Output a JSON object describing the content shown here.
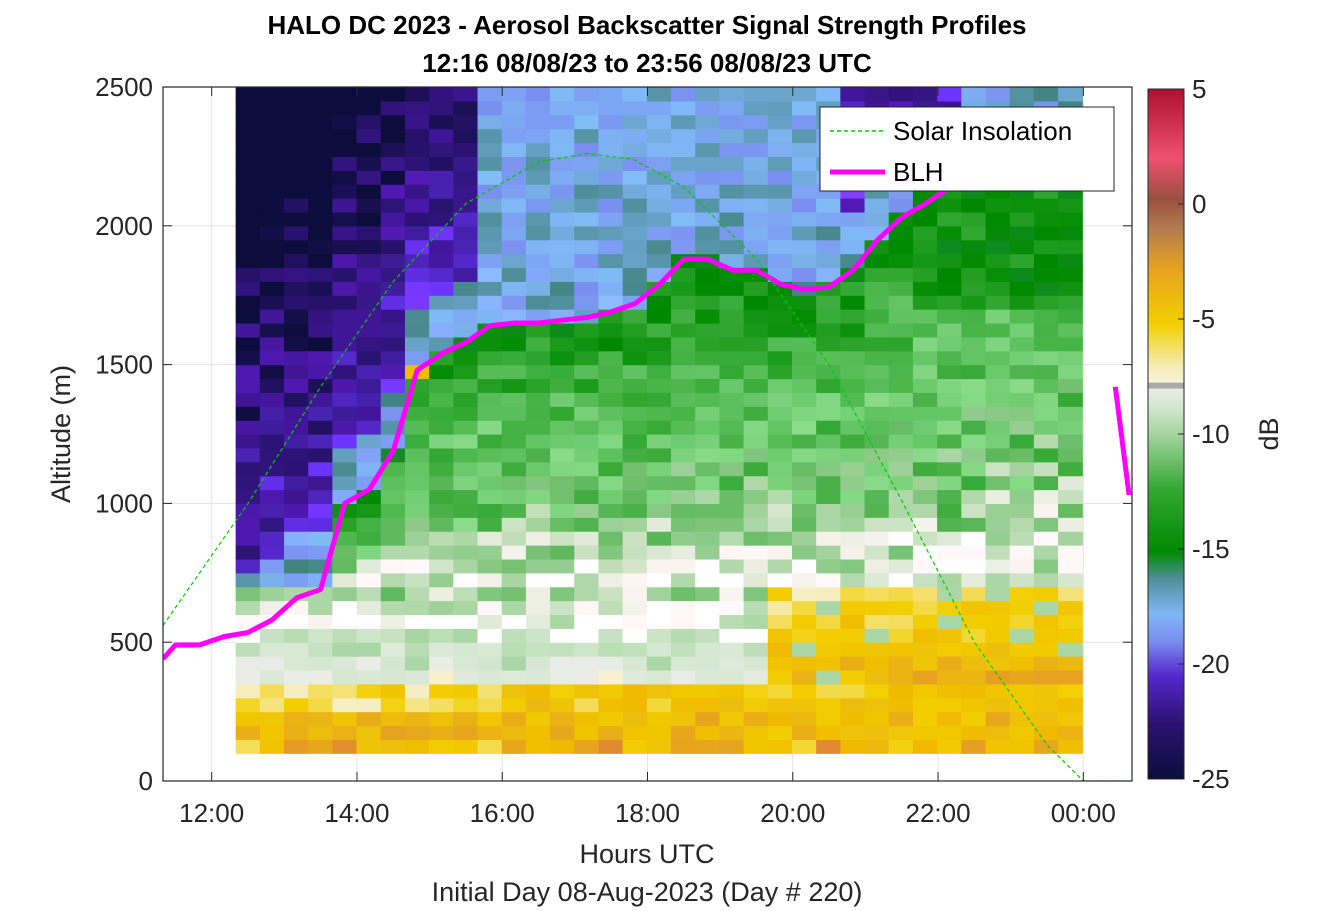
{
  "chart_data": {
    "type": "heatmap",
    "title": "HALO DC 2023 - Aerosol Backscatter Signal Strength Profiles",
    "subtitle": "12:16 08/08/23 to 23:56 08/08/23  UTC",
    "xlabel": "Hours UTC",
    "xlabel2": "Initial Day 08-Aug-2023 (Day # 220)",
    "ylabel": "Altitude (m)",
    "xlim": [
      11.33,
      24.67
    ],
    "ylim": [
      0,
      2500
    ],
    "x_ticks": [
      {
        "value": 12,
        "label": "12:00"
      },
      {
        "value": 14,
        "label": "14:00"
      },
      {
        "value": 16,
        "label": "16:00"
      },
      {
        "value": 18,
        "label": "18:00"
      },
      {
        "value": 20,
        "label": "20:00"
      },
      {
        "value": 22,
        "label": "22:00"
      },
      {
        "value": 24,
        "label": "00:00"
      }
    ],
    "y_ticks": [
      {
        "value": 0,
        "label": "0"
      },
      {
        "value": 500,
        "label": "500"
      },
      {
        "value": 1000,
        "label": "1000"
      },
      {
        "value": 1500,
        "label": "1500"
      },
      {
        "value": 2000,
        "label": "2000"
      },
      {
        "value": 2500,
        "label": "2500"
      }
    ],
    "grid": true,
    "legend_placement": "top-right",
    "colorbar": {
      "label": "dB",
      "range": [
        -25,
        5
      ],
      "ticks": [
        {
          "value": 5,
          "label": "5"
        },
        {
          "value": 0,
          "label": "0"
        },
        {
          "value": -5,
          "label": "-5"
        },
        {
          "value": -10,
          "label": "-10"
        },
        {
          "value": -15,
          "label": "-15"
        },
        {
          "value": -20,
          "label": "-20"
        },
        {
          "value": -25,
          "label": "-25"
        }
      ]
    },
    "heatmap_grid": {
      "x_start": 12.33,
      "x_step": 0.333,
      "y_start": 100,
      "y_step": 50,
      "x_count": 35,
      "y_count": 48
    },
    "series": [
      {
        "name": "BLH",
        "color": "#ff00ff",
        "x": [
          11.33,
          11.5,
          11.83,
          12.17,
          12.5,
          12.83,
          13.17,
          13.5,
          13.83,
          14.17,
          14.5,
          14.83,
          15.17,
          15.5,
          15.83,
          16.17,
          16.5,
          16.83,
          17.17,
          17.5,
          17.83,
          18.17,
          18.5,
          18.83,
          19.17,
          19.5,
          19.83,
          20.17,
          20.5,
          20.83,
          21.17,
          21.5,
          21.83,
          22.17
        ],
        "y": [
          440,
          490,
          490,
          520,
          535,
          580,
          660,
          690,
          1000,
          1050,
          1190,
          1480,
          1540,
          1580,
          1640,
          1650,
          1650,
          1660,
          1670,
          1690,
          1720,
          1790,
          1880,
          1880,
          1840,
          1840,
          1790,
          1770,
          1780,
          1840,
          1950,
          2030,
          2080,
          2140
        ]
      },
      {
        "name": "BLH",
        "color": "#ff00ff",
        "x": [
          24.44,
          24.63
        ],
        "y": [
          1420,
          1030
        ]
      },
      {
        "name": "Solar Insolation",
        "color": "#00cc00",
        "x": [
          11.33,
          12.5,
          13.5,
          14.5,
          15.5,
          16.5,
          17.17,
          17.8,
          18.5,
          19.5,
          20.5,
          21.5,
          22.5,
          23.5,
          24.0,
          24.17,
          24.67
        ],
        "y": [
          560,
          1000,
          1420,
          1800,
          2080,
          2230,
          2260,
          2240,
          2140,
          1880,
          1500,
          1010,
          500,
          130,
          0,
          0,
          0
        ]
      }
    ]
  }
}
